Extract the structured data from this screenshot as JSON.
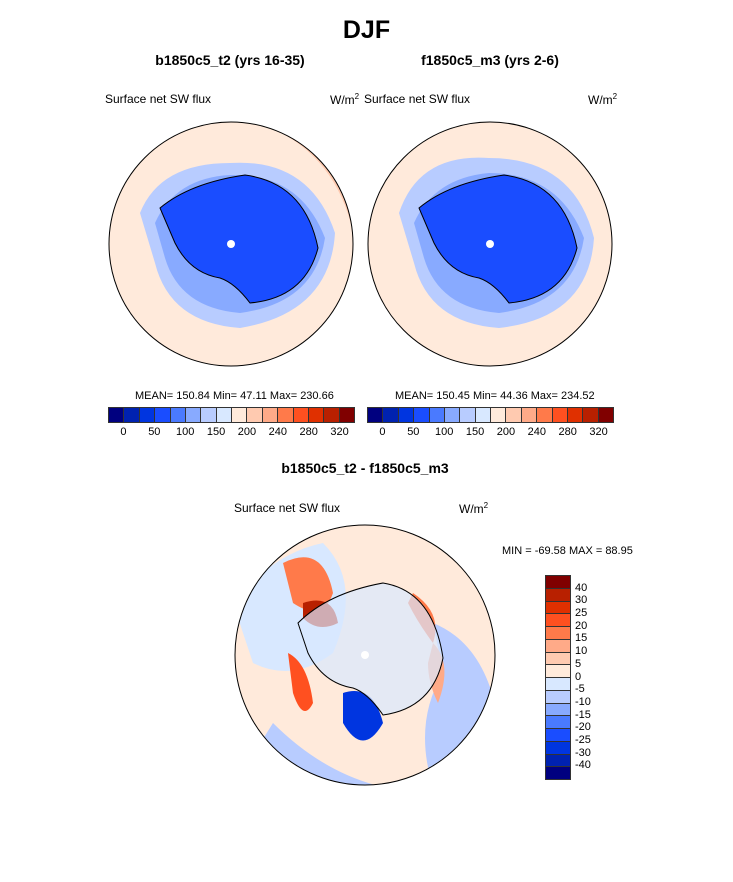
{
  "title": "DJF",
  "panels": [
    {
      "title": "b1850c5_t2 (yrs 16-35)",
      "left_label": "Surface net SW flux",
      "units": "W/m",
      "units_sup": "2",
      "stats": "MEAN= 150.84  Min=  47.11  Max= 230.66"
    },
    {
      "title": "f1850c5_m3 (yrs 2-6)",
      "left_label": "Surface net SW flux",
      "units": "W/m",
      "units_sup": "2",
      "stats": "MEAN= 150.45  Min=  44.36  Max= 234.52"
    }
  ],
  "abs_colorbar": {
    "colors": [
      "#00007f",
      "#0022b0",
      "#0035e0",
      "#1a4dff",
      "#4a7aff",
      "#88aaff",
      "#b8ccff",
      "#d8e8ff",
      "#ffeadb",
      "#ffcab0",
      "#ffaa88",
      "#ff7a4a",
      "#ff5020",
      "#e03000",
      "#b82000",
      "#800000"
    ],
    "labels": [
      "0",
      "50",
      "100",
      "150",
      "200",
      "240",
      "280",
      "320"
    ]
  },
  "diff": {
    "title": "b1850c5_t2 - f1850c5_m3",
    "left_label": "Surface net SW flux",
    "units": "W/m",
    "units_sup": "2",
    "stats": "MIN = -69.58 MAX =  88.95"
  },
  "diff_colorbar": {
    "colors": [
      "#800000",
      "#b82000",
      "#e03000",
      "#ff5020",
      "#ff7a4a",
      "#ffaa88",
      "#ffcab0",
      "#ffeadb",
      "#d8e8ff",
      "#b8ccff",
      "#88aaff",
      "#4a7aff",
      "#1a4dff",
      "#0035e0",
      "#0022b0",
      "#00007f"
    ],
    "labels": [
      "40",
      "30",
      "25",
      "20",
      "15",
      "10",
      "5",
      "0",
      "-5",
      "-10",
      "-15",
      "-20",
      "-25",
      "-30",
      "-40"
    ]
  }
}
